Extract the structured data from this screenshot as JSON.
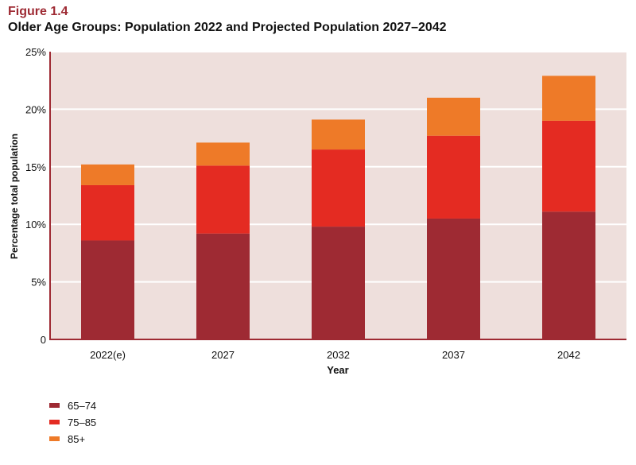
{
  "figure_label": "Figure 1.4",
  "chart_data": {
    "type": "bar",
    "stacked": true,
    "title": "Older Age Groups: Population 2022 and Projected Population 2027–2042",
    "xlabel": "Year",
    "ylabel": "Percentage total population",
    "categories": [
      "2022(e)",
      "2027",
      "2032",
      "2037",
      "2042"
    ],
    "ylim": [
      0,
      25
    ],
    "yticks": [
      0,
      5,
      10,
      15,
      20,
      25
    ],
    "ytick_labels": [
      "0",
      "5%",
      "10%",
      "15%",
      "20%",
      "25%"
    ],
    "grid": true,
    "legend_position": "bottom-left",
    "background_color": "#eedfdc",
    "series": [
      {
        "name": "65–74",
        "color": "#9e2a33",
        "values": [
          8.6,
          9.2,
          9.8,
          10.5,
          11.1
        ]
      },
      {
        "name": "75–85",
        "color": "#e42b22",
        "values": [
          4.8,
          5.9,
          6.7,
          7.2,
          7.9
        ]
      },
      {
        "name": "85+",
        "color": "#ee7a28",
        "values": [
          1.8,
          2.0,
          2.6,
          3.3,
          3.9
        ]
      }
    ]
  }
}
